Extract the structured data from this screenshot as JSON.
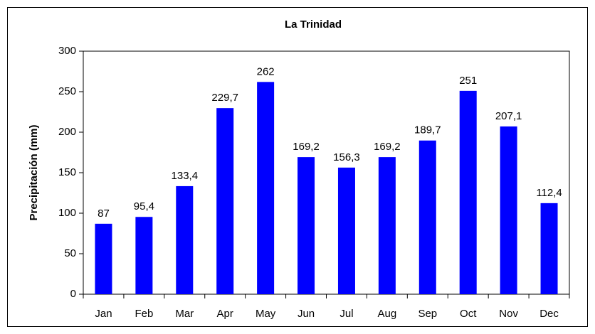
{
  "chart_data": {
    "type": "bar",
    "title": "La Trinidad",
    "y_label": "Precipitación (mm)",
    "categories": [
      "Jan",
      "Feb",
      "Mar",
      "Apr",
      "May",
      "Jun",
      "Jul",
      "Aug",
      "Sep",
      "Oct",
      "Nov",
      "Dec"
    ],
    "values": [
      87,
      95.4,
      133.4,
      229.7,
      262,
      169.2,
      156.3,
      169.2,
      189.7,
      251,
      207.1,
      112.4
    ],
    "value_labels": [
      "87",
      "95,4",
      "133,4",
      "229,7",
      "262",
      "169,2",
      "156,3",
      "169,2",
      "189,7",
      "251",
      "207,1",
      "112,4"
    ],
    "color": "#0000ff",
    "ylim": [
      0,
      300
    ],
    "yticks": [
      0,
      50,
      100,
      150,
      200,
      250,
      300
    ],
    "grid": false
  }
}
